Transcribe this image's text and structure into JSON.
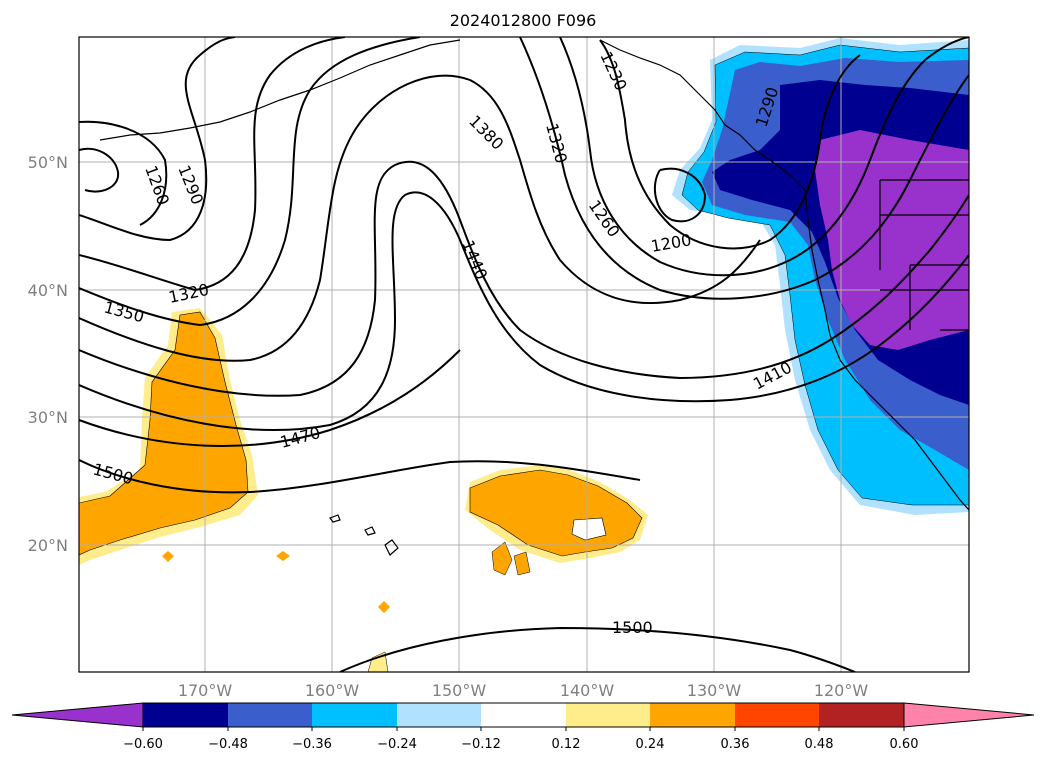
{
  "title": "2024012800 F096",
  "map": {
    "lat_labels": [
      "50°N",
      "40°N",
      "30°N",
      "20°N"
    ],
    "lon_labels": [
      "170°W",
      "160°W",
      "150°W",
      "140°W",
      "130°W",
      "120°W"
    ],
    "contour_labels": [
      {
        "text": "1260"
      },
      {
        "text": "1290"
      },
      {
        "text": "1320"
      },
      {
        "text": "1350"
      },
      {
        "text": "1230"
      },
      {
        "text": "1380"
      },
      {
        "text": "1320"
      },
      {
        "text": "1290"
      },
      {
        "text": "1260"
      },
      {
        "text": "1200"
      },
      {
        "text": "1440"
      },
      {
        "text": "1410"
      },
      {
        "text": "1470"
      },
      {
        "text": "1500"
      },
      {
        "text": "1500"
      }
    ]
  },
  "colorbar": {
    "ticks": [
      "−0.60",
      "−0.48",
      "−0.36",
      "−0.24",
      "−0.12",
      "0.12",
      "0.24",
      "0.36",
      "0.48",
      "0.60"
    ],
    "colors": [
      "#9932cc",
      "#000090",
      "#3a5fcd",
      "#00bfff",
      "#b0e2ff",
      "#ffffff",
      "#ffec8b",
      "#ffa500",
      "#ff4500",
      "#b22222",
      "#ff82ab"
    ]
  }
}
